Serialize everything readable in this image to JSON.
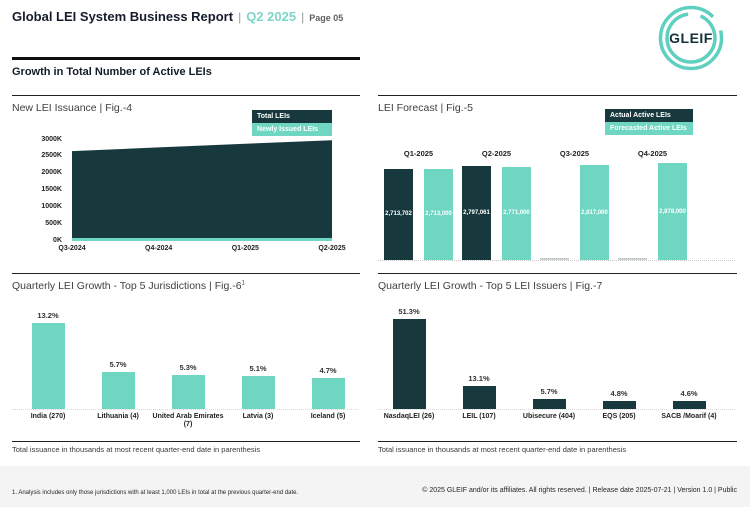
{
  "header": {
    "title": "Global LEI System Business Report",
    "sep": "|",
    "period": "Q2 2025",
    "page": "Page 05"
  },
  "logo": {
    "text": "GLEIF"
  },
  "section": {
    "title": "Growth in Total Number of Active LEIs"
  },
  "colors": {
    "dark_navy": "#17393e",
    "teal": "#6fd6c2",
    "header_period_teal": "#7ed6c8",
    "logo_teal": "#5fcfc0",
    "missing_bar_gray": "#c9ced1",
    "footer_bg": "#f4f4f5"
  },
  "chart_data": [
    {
      "id": "new-lei-issuance",
      "type": "area",
      "title": "New LEI Issuance | Fig.-4",
      "categories": [
        "Q3-2024",
        "Q4-2024",
        "Q1-2025",
        "Q2-2025"
      ],
      "series": [
        {
          "name": "Total LEIs",
          "color": "#17393e",
          "values_k_estimated": [
            2670,
            2780,
            2890,
            2990
          ]
        },
        {
          "name": "Newly Issued LEIs",
          "color": "#6fd6c2",
          "values_k_estimated": [
            90,
            90,
            90,
            90
          ]
        }
      ],
      "y_ticks": [
        "3000K",
        "2500K",
        "2000K",
        "1500K",
        "1000K",
        "500K",
        "0K"
      ],
      "ylim_k": [
        0,
        3000
      ],
      "grid": false,
      "legend_position": "top-right"
    },
    {
      "id": "lei-forecast",
      "type": "bar",
      "title": "LEI Forecast | Fig.-5",
      "categories": [
        "Q1-2025",
        "Q2-2025",
        "Q3-2025",
        "Q4-2025"
      ],
      "series": [
        {
          "name": "Actual Active LEIs",
          "color": "#17393e",
          "values": [
            2713702,
            2797061,
            null,
            null
          ],
          "labels": [
            "2,713,702",
            "2,797,061",
            null,
            null
          ]
        },
        {
          "name": "Forecasted Active LEIs",
          "color": "#6fd6c2",
          "values": [
            2713000,
            2771000,
            2817000,
            2878000
          ],
          "labels": [
            "2,713,000",
            "2,771,000",
            "2,817,000",
            "2,878,000"
          ]
        }
      ],
      "category_label_position": "above-bars",
      "value_label_position": "inside-middle-white",
      "legend_position": "top-right"
    },
    {
      "id": "top5-jurisdictions",
      "type": "bar",
      "title": "Quarterly LEI Growth - Top 5 Jurisdictions | Fig.-6",
      "title_sup": "1",
      "categories": [
        "India (270)",
        "Lithuania (4)",
        "United Arab Emirates (7)",
        "Latvia (3)",
        "Iceland (5)"
      ],
      "values_pct": [
        13.2,
        5.7,
        5.3,
        5.1,
        4.7
      ],
      "value_labels": [
        "13.2%",
        "5.7%",
        "5.3%",
        "5.1%",
        "4.7%"
      ],
      "bar_color": "#6fd6c2",
      "note": "Total issuance in thousands at most recent quarter-end date in parenthesis"
    },
    {
      "id": "top5-issuers",
      "type": "bar",
      "title": "Quarterly LEI Growth - Top 5 LEI Issuers | Fig.-7",
      "categories": [
        "NasdaqLEI (26)",
        "LEIL (107)",
        "Ubisecure (404)",
        "EQS (205)",
        "SACB /Moarif (4)"
      ],
      "values_pct": [
        51.3,
        13.1,
        5.7,
        4.8,
        4.6
      ],
      "value_labels": [
        "51.3%",
        "13.1%",
        "5.7%",
        "4.8%",
        "4.6%"
      ],
      "bar_color": "#17393e",
      "note": "Total issuance in thousands at most recent quarter-end date in parenthesis"
    }
  ],
  "footer": {
    "footnote": "1. Analysis includes only those jurisdictions with at least 1,000 LEIs in total at the previous quarter-end date.",
    "copyright": "© 2025 GLEIF and/or its affiliates. All rights reserved. | Release date 2025-07-21 | Version 1.0 | Public"
  }
}
